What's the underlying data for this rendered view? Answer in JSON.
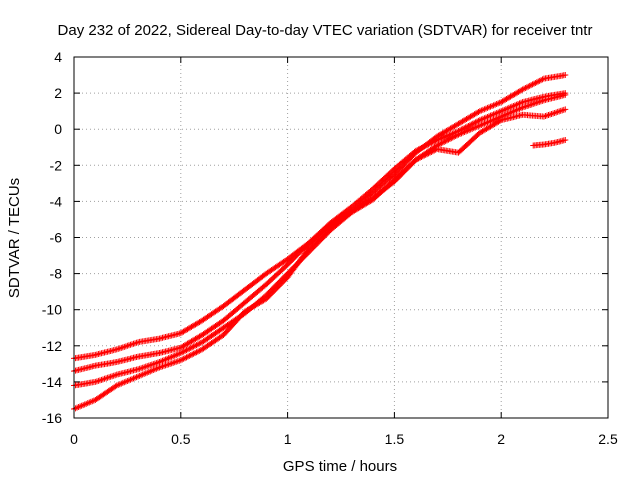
{
  "chart_data": {
    "type": "scatter",
    "title": "Day 232 of 2022, Sidereal Day-to-day VTEC variation (SDTVAR) for receiver tntr",
    "xlabel": "GPS time / hours",
    "ylabel": "SDTVAR / TECUs",
    "xlim": [
      0,
      2.5
    ],
    "ylim": [
      -16,
      4
    ],
    "xticks": [
      0,
      0.5,
      1,
      1.5,
      2,
      2.5
    ],
    "xtick_labels": [
      "0",
      "0.5",
      "1",
      "1.5",
      "2",
      "2.5"
    ],
    "yticks": [
      -16,
      -14,
      -12,
      -10,
      -8,
      -6,
      -4,
      -2,
      0,
      2,
      4
    ],
    "ytick_labels": [
      "-16",
      "-14",
      "-12",
      "-10",
      "-8",
      "-6",
      "-4",
      "-2",
      "0",
      "2",
      "4"
    ],
    "grid": true,
    "marker": "+",
    "marker_color": "#ff0000",
    "series": [
      {
        "name": "track-1",
        "x": [
          0.0,
          0.1,
          0.2,
          0.3,
          0.4,
          0.5,
          0.6,
          0.7,
          0.8,
          0.9,
          1.0,
          1.1,
          1.2,
          1.3,
          1.4,
          1.5,
          1.6,
          1.7,
          1.8,
          1.9,
          2.0,
          2.1,
          2.2,
          2.3
        ],
        "y": [
          -12.7,
          -12.5,
          -12.2,
          -11.8,
          -11.6,
          -11.3,
          -10.6,
          -9.8,
          -8.9,
          -8.0,
          -7.2,
          -6.3,
          -5.3,
          -4.5,
          -3.5,
          -2.5,
          -1.3,
          -0.4,
          0.3,
          1.0,
          1.5,
          2.2,
          2.8,
          3.0
        ]
      },
      {
        "name": "track-2",
        "x": [
          0.0,
          0.1,
          0.2,
          0.3,
          0.4,
          0.5,
          0.6,
          0.7,
          0.8,
          0.9,
          1.0,
          1.1,
          1.2,
          1.3,
          1.4,
          1.5,
          1.6,
          1.7,
          1.8,
          1.9,
          2.0,
          2.1,
          2.2,
          2.3
        ],
        "y": [
          -13.4,
          -13.1,
          -12.9,
          -12.6,
          -12.4,
          -12.1,
          -11.4,
          -10.6,
          -9.6,
          -8.6,
          -7.5,
          -6.3,
          -5.2,
          -4.3,
          -3.3,
          -2.2,
          -1.2,
          -0.6,
          -0.1,
          0.5,
          1.0,
          1.5,
          1.8,
          2.0
        ]
      },
      {
        "name": "track-3",
        "x": [
          0.0,
          0.1,
          0.2,
          0.3,
          0.4,
          0.5,
          0.6,
          0.7,
          0.8,
          0.9,
          1.0,
          1.1,
          1.2,
          1.3,
          1.4,
          1.5,
          1.6,
          1.7,
          1.8,
          1.9,
          2.0,
          2.1,
          2.2,
          2.3
        ],
        "y": [
          -14.2,
          -14.0,
          -13.6,
          -13.3,
          -12.9,
          -12.4,
          -11.8,
          -11.0,
          -10.2,
          -9.2,
          -8.0,
          -6.8,
          -5.6,
          -4.6,
          -3.8,
          -2.9,
          -1.7,
          -0.9,
          -0.3,
          0.2,
          0.7,
          1.2,
          1.6,
          1.9
        ]
      },
      {
        "name": "track-4",
        "x": [
          0.0,
          0.1,
          0.2,
          0.3,
          0.4,
          0.5,
          0.6,
          0.7,
          0.8,
          0.9,
          1.0,
          1.1,
          1.2,
          1.3,
          1.4,
          1.5,
          1.6,
          1.7,
          1.8,
          1.9,
          2.0,
          2.1,
          2.2,
          2.3
        ],
        "y": [
          -15.5,
          -15.0,
          -14.2,
          -13.7,
          -13.2,
          -12.8,
          -12.2,
          -11.4,
          -10.1,
          -9.4,
          -8.2,
          -6.6,
          -5.5,
          -4.6,
          -3.9,
          -2.8,
          -1.7,
          -1.1,
          -1.3,
          -0.2,
          0.5,
          0.8,
          0.7,
          1.1
        ]
      },
      {
        "name": "track-5",
        "x": [
          2.15,
          2.2,
          2.25,
          2.3
        ],
        "y": [
          -0.9,
          -0.85,
          -0.75,
          -0.6
        ]
      }
    ]
  }
}
